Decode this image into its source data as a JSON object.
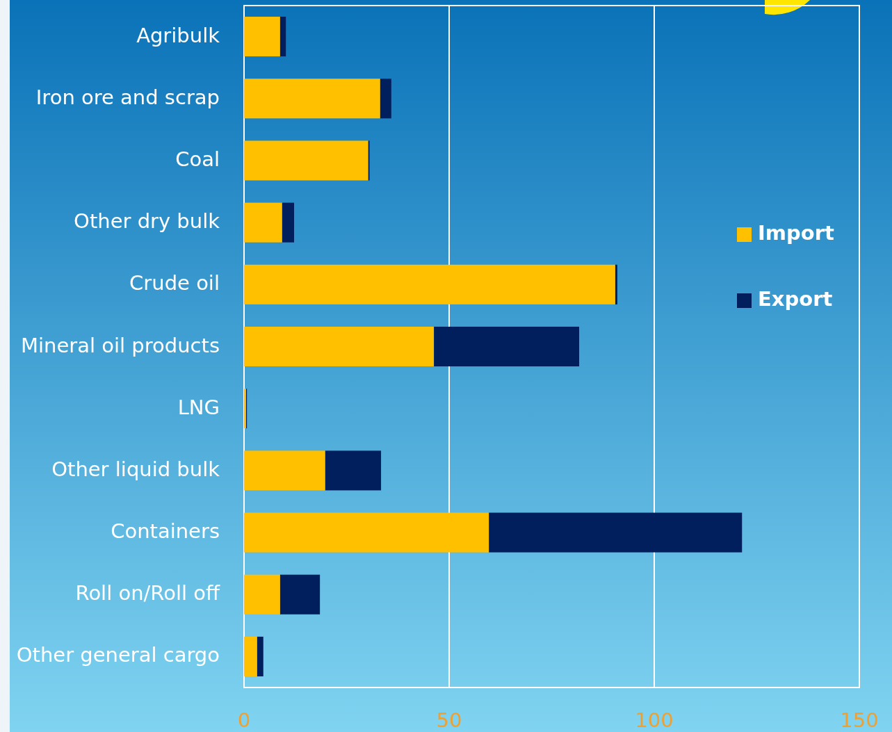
{
  "chart_data": {
    "type": "bar",
    "orientation": "horizontal",
    "stacked": true,
    "categories": [
      "Agribulk",
      "Iron ore and scrap",
      "Coal",
      "Other dry bulk",
      "Crude oil",
      "Mineral oil products",
      "LNG",
      "Other liquid bulk",
      "Containers",
      "Roll on/Roll off",
      "Other general cargo"
    ],
    "series": [
      {
        "name": "Import",
        "color": "#ffc000",
        "values": [
          8.8,
          33.2,
          30.3,
          9.3,
          90.5,
          46.3,
          0.5,
          19.8,
          59.7,
          8.8,
          3.2
        ]
      },
      {
        "name": "Export",
        "color": "#001f5c",
        "values": [
          1.4,
          2.7,
          0.3,
          2.9,
          0.5,
          35.4,
          0.2,
          13.6,
          61.7,
          9.7,
          1.5
        ]
      }
    ],
    "xlim": [
      0,
      150
    ],
    "xticks": [
      0,
      50,
      100,
      150
    ],
    "grid": "x",
    "legend": "right"
  }
}
